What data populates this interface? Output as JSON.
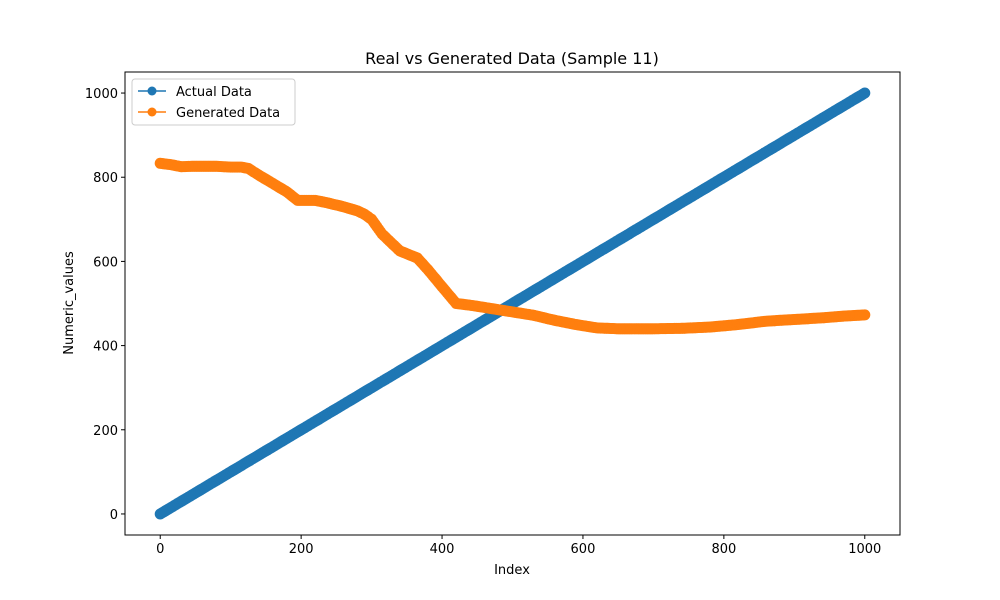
{
  "chart_data": {
    "type": "line",
    "title": "Real vs Generated Data (Sample 11)",
    "xlabel": "Index",
    "ylabel": "Numeric_values",
    "xlim": [
      -50,
      1050
    ],
    "ylim": [
      -50,
      1050
    ],
    "xticks": [
      0,
      200,
      400,
      600,
      800,
      1000
    ],
    "yticks": [
      0,
      200,
      400,
      600,
      800,
      1000
    ],
    "grid": false,
    "legend_position": "top-left",
    "series": [
      {
        "name": "Actual Data",
        "color": "#1f77b4",
        "marker": "circle",
        "x": [
          0,
          1000
        ],
        "y": [
          0,
          1000
        ]
      },
      {
        "name": "Generated Data",
        "color": "#ff7f0e",
        "marker": "circle",
        "x": [
          0,
          15,
          30,
          45,
          60,
          80,
          100,
          115,
          125,
          140,
          160,
          180,
          195,
          205,
          220,
          235,
          260,
          280,
          290,
          300,
          315,
          340,
          365,
          380,
          400,
          420,
          440,
          470,
          500,
          530,
          560,
          590,
          620,
          650,
          680,
          700,
          740,
          780,
          820,
          860,
          900,
          940,
          970,
          1000
        ],
        "y": [
          833,
          830,
          825,
          826,
          826,
          826,
          824,
          824,
          821,
          805,
          785,
          765,
          745,
          745,
          745,
          740,
          730,
          720,
          712,
          700,
          665,
          625,
          608,
          580,
          540,
          500,
          496,
          488,
          480,
          472,
          460,
          450,
          442,
          440,
          440,
          440,
          441,
          444,
          450,
          458,
          462,
          466,
          470,
          473
        ]
      }
    ]
  }
}
